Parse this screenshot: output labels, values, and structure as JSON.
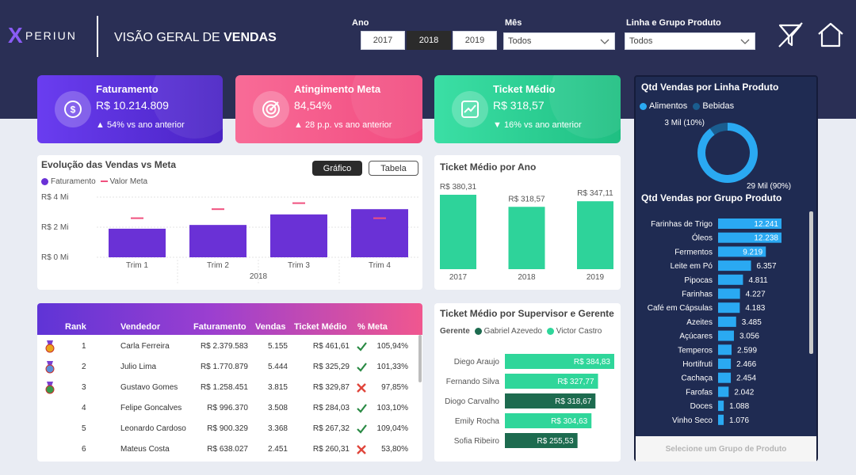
{
  "brand": {
    "logo_mark": "X",
    "logo_text": "PERIUN"
  },
  "header": {
    "title_prefix": "VISÃO GERAL DE ",
    "title_bold": "VENDAS"
  },
  "filters": {
    "ano_label": "Ano",
    "years": [
      "2017",
      "2018",
      "2019"
    ],
    "selected_year": "2018",
    "mes_label": "Mês",
    "mes_value": "Todos",
    "linha_label": "Linha e Grupo Produto",
    "linha_value": "Todos"
  },
  "header_icons": [
    "clear-filters-icon",
    "home-icon"
  ],
  "kpis": [
    {
      "title": "Faturamento",
      "value": "R$ 10.214.809",
      "delta": "▲ 54% vs ano anterior",
      "icon": "money-icon",
      "color": "#5b2fd9"
    },
    {
      "title": "Atingimento Meta",
      "value": "84,54%",
      "delta": "▲ 28 p.p. vs ano anterior",
      "icon": "target-icon",
      "color": "#f35a8a"
    },
    {
      "title": "Ticket Médio",
      "value": "R$ 318,57",
      "delta": "▼ 16% vs ano anterior",
      "icon": "trend-chart-icon",
      "color": "#22c98b"
    }
  ],
  "evolucao": {
    "title": "Evolução das Vendas vs Meta",
    "btn_grafico": "Gráfico",
    "btn_tabela": "Tabela",
    "legend_fat": "Faturamento",
    "legend_meta": "Valor Meta",
    "y_ticks": [
      "R$ 4 Mi",
      "R$ 2 Mi",
      "R$ 0 Mi"
    ],
    "year_label": "2018"
  },
  "ticket_ano": {
    "title": "Ticket Médio por Ano"
  },
  "ranking": {
    "headers": [
      "Rank",
      "Vendedor",
      "Faturamento",
      "Vendas",
      "Ticket Médio",
      "% Meta"
    ],
    "rows": [
      {
        "rank": "1",
        "name": "Carla Ferreira",
        "fat": "R$ 2.379.583",
        "vendas": "5.155",
        "ticket": "R$ 461,61",
        "ok": true,
        "meta": "105,94%",
        "medal": "gold"
      },
      {
        "rank": "2",
        "name": "Julio Lima",
        "fat": "R$ 1.770.879",
        "vendas": "5.444",
        "ticket": "R$ 325,29",
        "ok": true,
        "meta": "101,33%",
        "medal": "silver"
      },
      {
        "rank": "3",
        "name": "Gustavo Gomes",
        "fat": "R$ 1.258.451",
        "vendas": "3.815",
        "ticket": "R$ 329,87",
        "ok": false,
        "meta": "97,85%",
        "medal": "bronze"
      },
      {
        "rank": "4",
        "name": "Felipe Goncalves",
        "fat": "R$ 996.370",
        "vendas": "3.508",
        "ticket": "R$ 284,03",
        "ok": true,
        "meta": "103,10%",
        "medal": ""
      },
      {
        "rank": "5",
        "name": "Leonardo Cardoso",
        "fat": "R$ 900.329",
        "vendas": "3.368",
        "ticket": "R$ 267,32",
        "ok": true,
        "meta": "109,04%",
        "medal": ""
      },
      {
        "rank": "6",
        "name": "Mateus Costa",
        "fat": "R$ 638.027",
        "vendas": "2.451",
        "ticket": "R$ 260,31",
        "ok": false,
        "meta": "53,80%",
        "medal": ""
      }
    ]
  },
  "supervisor": {
    "title": "Ticket Médio por Supervisor e Gerente",
    "legend_title": "Gerente",
    "legend": [
      {
        "name": "Gabriel Azevedo",
        "color": "#1d6b4f"
      },
      {
        "name": "Victor Castro",
        "color": "#2fd69a"
      }
    ]
  },
  "right": {
    "linha_title": "Qtd Vendas por Linha Produto",
    "legend": [
      {
        "name": "Alimentos",
        "color": "#2aa9f2"
      },
      {
        "name": "Bebidas",
        "color": "#1a5d8f"
      }
    ],
    "grupo_title": "Qtd Vendas por Grupo Produto",
    "select_btn": "Selecione um Grupo de Produto"
  },
  "chart_data": [
    {
      "type": "bar",
      "title": "Evolução das Vendas vs Meta",
      "categories": [
        "Trim 1",
        "Trim 2",
        "Trim 3",
        "Trim 4"
      ],
      "series": [
        {
          "name": "Faturamento",
          "values": [
            1.9,
            2.15,
            2.85,
            3.2
          ],
          "color": "#6a31d6"
        },
        {
          "name": "Valor Meta",
          "values": [
            2.6,
            3.2,
            3.6,
            2.6
          ],
          "color": "#f0507e"
        }
      ],
      "ylim": [
        0,
        4
      ],
      "xlabel": "2018"
    },
    {
      "type": "bar",
      "title": "Ticket Médio por Ano",
      "categories": [
        "2017",
        "2018",
        "2019"
      ],
      "values": [
        380.31,
        318.57,
        347.11
      ],
      "labels": [
        "R$ 380,31",
        "R$ 318,57",
        "R$ 347,11"
      ],
      "color": "#2ed39a"
    },
    {
      "type": "bar",
      "title": "Ticket Médio por Supervisor e Gerente",
      "categories": [
        "Diego Araujo",
        "Fernando Silva",
        "Diogo Carvalho",
        "Emily Rocha",
        "Sofia Ribeiro"
      ],
      "values": [
        384.83,
        327.77,
        318.67,
        304.63,
        255.53
      ],
      "labels": [
        "R$ 384,83",
        "R$ 327,77",
        "R$ 318,67",
        "R$ 304,63",
        "R$ 255,53"
      ],
      "gerente": [
        "Victor Castro",
        "Victor Castro",
        "Gabriel Azevedo",
        "Victor Castro",
        "Gabriel Azevedo"
      ]
    },
    {
      "type": "pie",
      "title": "Qtd Vendas por Linha Produto",
      "categories": [
        "Alimentos",
        "Bebidas"
      ],
      "values": [
        90,
        10
      ],
      "labels": [
        "29 Mil (90%)",
        "3 Mil (10%)"
      ]
    },
    {
      "type": "bar",
      "title": "Qtd Vendas por Grupo Produto",
      "categories": [
        "Farinhas de Trigo",
        "Óleos",
        "Fermentos",
        "Leite em Pó",
        "Pipocas",
        "Farinhas",
        "Café em Cápsulas",
        "Azeites",
        "Açúcares",
        "Temperos",
        "Hortifruti",
        "Cachaça",
        "Farofas",
        "Doces",
        "Vinho Seco"
      ],
      "values": [
        12241,
        12238,
        9219,
        6357,
        4811,
        4227,
        4183,
        3485,
        3056,
        2599,
        2466,
        2454,
        2042,
        1088,
        1076
      ],
      "labels": [
        "12.241",
        "12.238",
        "9.219",
        "6.357",
        "4.811",
        "4.227",
        "4.183",
        "3.485",
        "3.056",
        "2.599",
        "2.466",
        "2.454",
        "2.042",
        "1.088",
        "1.076"
      ]
    }
  ]
}
